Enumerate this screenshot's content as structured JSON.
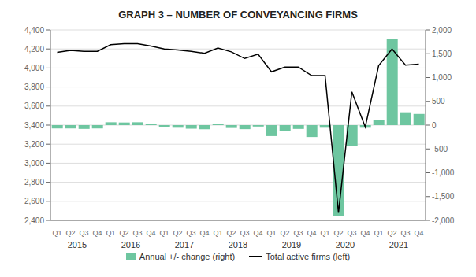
{
  "chart_data": {
    "type": "bar",
    "title": "GRAPH 3 – NUMBER OF CONVEYANCING FIRMS",
    "categories": [
      "Q1",
      "Q2",
      "Q3",
      "Q4",
      "Q1",
      "Q2",
      "Q3",
      "Q4",
      "Q1",
      "Q2",
      "Q3",
      "Q4",
      "Q1",
      "Q2",
      "Q3",
      "Q4",
      "Q1",
      "Q2",
      "Q3",
      "Q4",
      "Q1",
      "Q2",
      "Q3",
      "Q4",
      "Q1",
      "Q2",
      "Q3",
      "Q4"
    ],
    "annotations": [
      "2015",
      "2016",
      "2017",
      "2018",
      "2019",
      "2020",
      "2021"
    ],
    "series": [
      {
        "name": "Annual +/- change (right)",
        "type": "bar",
        "color": "#6ec6a0",
        "axis": "y2",
        "values": [
          -70,
          -70,
          -80,
          -70,
          60,
          55,
          60,
          30,
          -45,
          -55,
          -75,
          -85,
          25,
          -60,
          -85,
          -30,
          -230,
          -120,
          -80,
          -250,
          -55,
          -1900,
          -430,
          -55,
          110,
          1800,
          270,
          235
        ]
      },
      {
        "name": "Total active firms (left)",
        "type": "line",
        "color": "#000000",
        "values": [
          4165,
          4185,
          4175,
          4175,
          4245,
          4255,
          4255,
          4230,
          4200,
          4190,
          4175,
          4155,
          4210,
          4170,
          4100,
          4145,
          3960,
          4010,
          4010,
          3920,
          3920,
          2480,
          3750,
          3380,
          4025,
          4200,
          4030,
          4040
        ]
      }
    ],
    "ylim": [
      2400,
      4400
    ],
    "yticks": [
      {
        "value": 2400,
        "label": "2,400"
      },
      {
        "value": 2600,
        "label": "2,600"
      },
      {
        "value": 2800,
        "label": "2,800"
      },
      {
        "value": 3000,
        "label": "3,000"
      },
      {
        "value": 3200,
        "label": "3,200"
      },
      {
        "value": 3400,
        "label": "3,400"
      },
      {
        "value": 3600,
        "label": "3,600"
      },
      {
        "value": 3800,
        "label": "3,800"
      },
      {
        "value": 4000,
        "label": "4,000"
      },
      {
        "value": 4200,
        "label": "4,200"
      },
      {
        "value": 4400,
        "label": "4,400"
      }
    ],
    "y2lim": [
      -2000,
      2000
    ],
    "y2ticks": [
      {
        "value": -2000,
        "label": "-2,000"
      },
      {
        "value": -1500,
        "label": "-1,500"
      },
      {
        "value": -1000,
        "label": "-1,000"
      },
      -500,
      0,
      500,
      {
        "value": 1000,
        "label": "1,000"
      },
      {
        "value": 1500,
        "label": "1,500"
      },
      {
        "value": 2000,
        "label": "2,000"
      }
    ],
    "grid": true,
    "legend": "bottom"
  }
}
